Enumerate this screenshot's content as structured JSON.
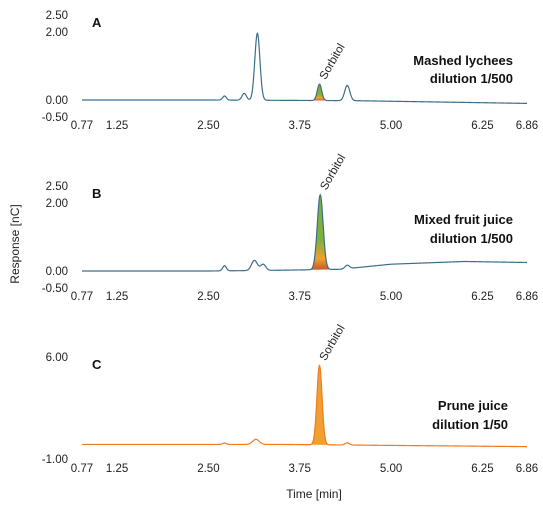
{
  "chart_data": [
    {
      "panel": "A",
      "type": "line",
      "annotation": [
        "Mashed lychees",
        "dilution 1/500"
      ],
      "peak_label": "Sorbitol",
      "peak_time": 4.02,
      "xlim": [
        0.77,
        6.86
      ],
      "x_ticks": [
        "0.77",
        "1.25",
        "2.50",
        "3.75",
        "5.00",
        "6.25",
        "6.86"
      ],
      "ylim": [
        -0.5,
        2.5
      ],
      "y_ticks": [
        "2.50",
        "2.00",
        "0.00",
        "-0.50"
      ],
      "baseline": [
        [
          0.77,
          0.0
        ],
        [
          2.5,
          0.0
        ],
        [
          4.5,
          -0.02
        ],
        [
          6.86,
          -0.1
        ]
      ],
      "peaks": [
        {
          "t": 2.72,
          "h": 0.12,
          "w": 0.025
        },
        {
          "t": 2.99,
          "h": 0.2,
          "w": 0.03
        },
        {
          "t": 3.17,
          "h": 1.97,
          "w": 0.035
        },
        {
          "t": 4.02,
          "h": 0.48,
          "w": 0.03
        },
        {
          "t": 4.4,
          "h": 0.45,
          "w": 0.035
        }
      ],
      "line_color": "#3a6f8a",
      "fill_colors": [
        "#f0a030",
        "#c45a2a",
        "#7fb03a"
      ]
    },
    {
      "panel": "B",
      "type": "line",
      "annotation": [
        "Mixed fruit juice",
        "dilution 1/500"
      ],
      "peak_label": "Sorbitol",
      "peak_time": 4.02,
      "xlim": [
        0.77,
        6.86
      ],
      "x_ticks": [
        "0.77",
        "1.25",
        "2.50",
        "3.75",
        "5.00",
        "6.25",
        "6.86"
      ],
      "ylim": [
        -0.5,
        2.5
      ],
      "y_ticks": [
        "2.50",
        "2.00",
        "0.00",
        "-0.50"
      ],
      "baseline": [
        [
          0.77,
          0.0
        ],
        [
          2.5,
          0.0
        ],
        [
          3.4,
          0.02
        ],
        [
          4.3,
          0.05
        ],
        [
          5.0,
          0.2
        ],
        [
          6.0,
          0.28
        ],
        [
          6.86,
          0.25
        ]
      ],
      "peaks": [
        {
          "t": 2.72,
          "h": 0.15,
          "w": 0.025
        },
        {
          "t": 3.13,
          "h": 0.3,
          "w": 0.04
        },
        {
          "t": 3.25,
          "h": 0.18,
          "w": 0.035
        },
        {
          "t": 4.03,
          "h": 2.2,
          "w": 0.04
        },
        {
          "t": 4.4,
          "h": 0.1,
          "w": 0.03
        }
      ],
      "line_color": "#3a6f8a",
      "fill_colors": [
        "#f0a030",
        "#c45a2a",
        "#7fb03a"
      ]
    },
    {
      "panel": "C",
      "type": "line",
      "annotation": [
        "Prune juice",
        "dilution 1/50"
      ],
      "peak_label": "Sorbitol",
      "peak_time": 4.02,
      "xlim": [
        0.77,
        6.86
      ],
      "x_ticks": [
        "0.77",
        "1.25",
        "2.50",
        "3.75",
        "5.00",
        "6.25",
        "6.86"
      ],
      "ylim": [
        -1.0,
        6.0
      ],
      "y_ticks": [
        "6.00",
        "-1.00"
      ],
      "baseline": [
        [
          0.77,
          0.0
        ],
        [
          3.5,
          0.0
        ],
        [
          6.86,
          -0.15
        ]
      ],
      "peaks": [
        {
          "t": 2.72,
          "h": 0.1,
          "w": 0.025
        },
        {
          "t": 3.15,
          "h": 0.35,
          "w": 0.045
        },
        {
          "t": 4.02,
          "h": 5.45,
          "w": 0.035
        },
        {
          "t": 4.4,
          "h": 0.15,
          "w": 0.03
        }
      ],
      "line_color": "#f07a20",
      "fill_colors": [
        "#f0a030"
      ]
    }
  ],
  "axis_labels": {
    "y": "Response [nC]",
    "x": "Time [min]"
  }
}
